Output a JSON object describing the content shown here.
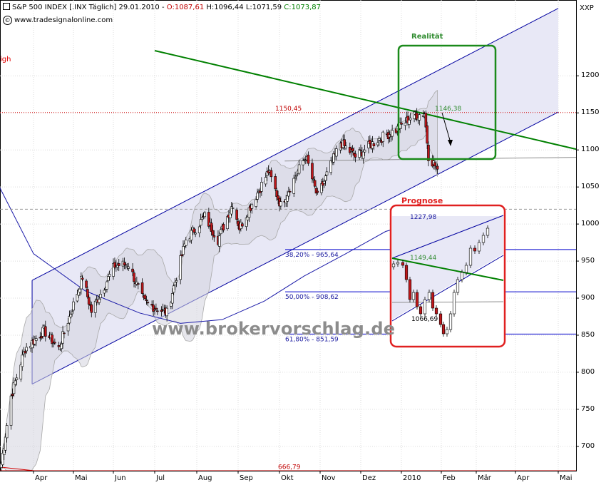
{
  "header": {
    "title": "S&P 500 INDEX [.INX Täglich] 29.01.2010 -",
    "open": "O:1087,61",
    "high": "H:1096,44",
    "low": "L:1071,59",
    "close": "C:1073,87",
    "source": "www.tradesignalonline.com",
    "copyright_symbol": "©"
  },
  "ticker_label": "XXP",
  "watermark": "www.brokervorschlag.de",
  "left_edge_label": "igh",
  "colors": {
    "up_candle": "#ffffff",
    "down_candle": "#c0171b",
    "channel": "#0000a0",
    "trendline": "#008000",
    "fib_line": "#0000cc",
    "level_line": "#d00000",
    "realitaet_box": "#1a8a1a",
    "prognose_box": "#e02020"
  },
  "chart_data": {
    "type": "line",
    "title": "S&P 500 INDEX [.INX Täglich] 29.01.2010",
    "ylabel": "",
    "xlabel": "",
    "yticks": [
      700,
      750,
      800,
      850,
      900,
      950,
      1000,
      1050,
      1100,
      1150,
      1200
    ],
    "ylim": [
      655,
      1235
    ],
    "xticks": [
      "Apr",
      "Mai",
      "Jun",
      "Jul",
      "Aug",
      "Sep",
      "Okt",
      "Nov",
      "Dez",
      "2010",
      "Feb",
      "Mär",
      "Apr",
      "Mai"
    ],
    "series": [
      {
        "name": "",
        "values": [
          {
            "x": "2009-03-09",
            "y": 677
          },
          {
            "x": "2009-03-16",
            "y": 768
          },
          {
            "x": "2009-03-26",
            "y": 832
          },
          {
            "x": "2009-04-09",
            "y": 856
          },
          {
            "x": "2009-04-20",
            "y": 832
          },
          {
            "x": "2009-05-08",
            "y": 929
          },
          {
            "x": "2009-05-15",
            "y": 882
          },
          {
            "x": "2009-06-02",
            "y": 944
          },
          {
            "x": "2009-06-12",
            "y": 946
          },
          {
            "x": "2009-06-23",
            "y": 895
          },
          {
            "x": "2009-07-10",
            "y": 880
          },
          {
            "x": "2009-07-24",
            "y": 979
          },
          {
            "x": "2009-08-07",
            "y": 1010
          },
          {
            "x": "2009-08-17",
            "y": 979
          },
          {
            "x": "2009-08-28",
            "y": 1028
          },
          {
            "x": "2009-09-02",
            "y": 995
          },
          {
            "x": "2009-09-23",
            "y": 1071
          },
          {
            "x": "2009-10-02",
            "y": 1025
          },
          {
            "x": "2009-10-21",
            "y": 1092
          },
          {
            "x": "2009-10-30",
            "y": 1036
          },
          {
            "x": "2009-11-16",
            "y": 1110
          },
          {
            "x": "2009-11-27",
            "y": 1091
          },
          {
            "x": "2009-12-14",
            "y": 1114
          },
          {
            "x": "2009-12-28",
            "y": 1127
          },
          {
            "x": "2010-01-08",
            "y": 1144
          },
          {
            "x": "2010-01-19",
            "y": 1150
          },
          {
            "x": "2010-01-22",
            "y": 1092
          },
          {
            "x": "2010-01-29",
            "y": 1074
          }
        ]
      }
    ],
    "annotations": {
      "levels": [
        {
          "label": "1150,45",
          "value": 1150.45,
          "style": "dotted",
          "color": "#d00000"
        },
        {
          "label": "666,79",
          "value": 666.79,
          "style": "solid",
          "color": "#e00000"
        }
      ],
      "fibonacci": [
        {
          "label": "38,20% - 965,64",
          "value": 965.64
        },
        {
          "label": "50,00% - 908,62",
          "value": 908.62
        },
        {
          "label": "61,80% - 851,59",
          "value": 851.59
        }
      ],
      "trend_value_label": "1146,38",
      "realitaet_title": "Realität",
      "prognose_title": "Prognose",
      "prognose_labels": [
        "1227,98",
        "1149,44",
        "1066,69"
      ]
    }
  }
}
